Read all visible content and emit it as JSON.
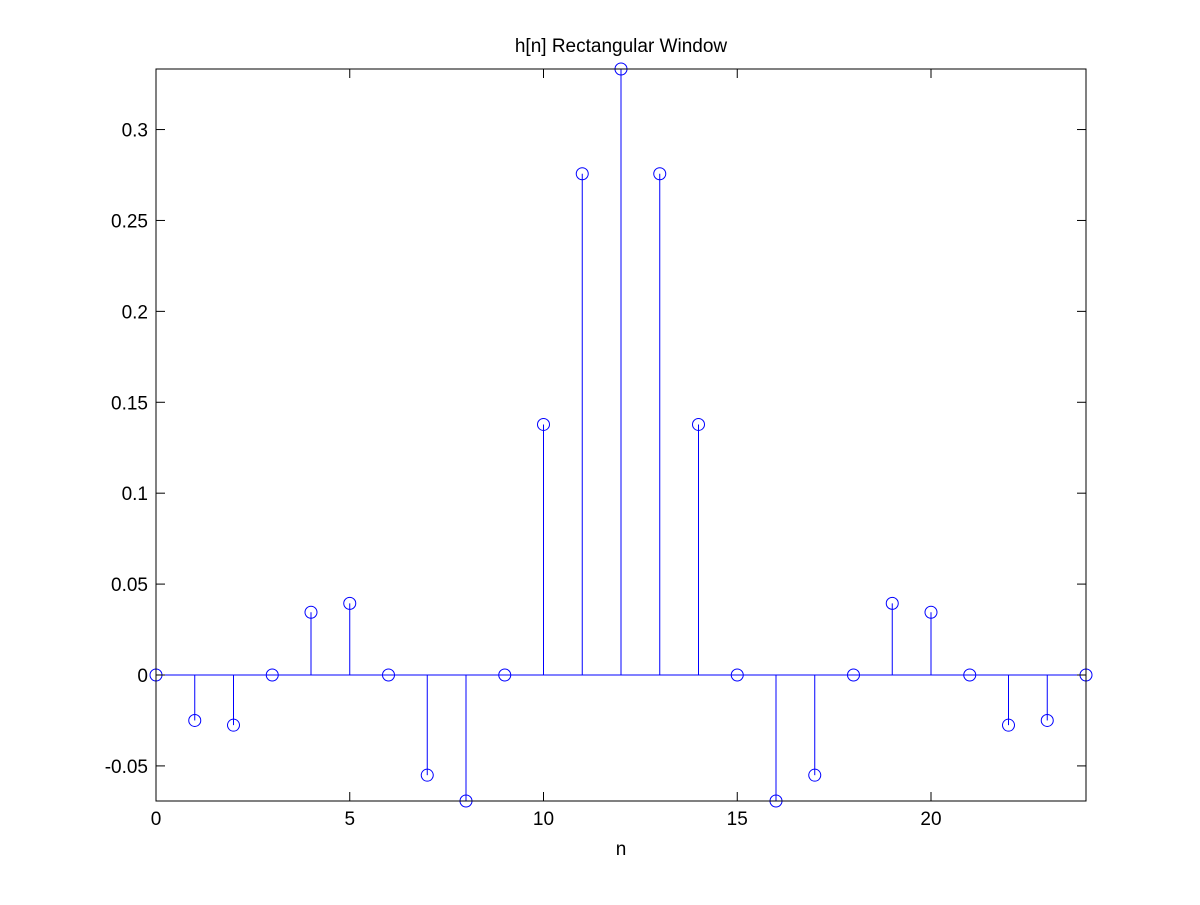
{
  "chart_data": {
    "type": "stem",
    "title": "h[n] Rectangular Window",
    "xlabel": "n",
    "ylabel": "",
    "xlim": [
      0,
      24
    ],
    "ylim": [
      -0.0693,
      0.3333
    ],
    "xticks": [
      0,
      5,
      10,
      15,
      20
    ],
    "xtick_labels": [
      "0",
      "5",
      "10",
      "15",
      "20"
    ],
    "yticks": [
      -0.05,
      0,
      0.05,
      0.1,
      0.15,
      0.2,
      0.25,
      0.3
    ],
    "ytick_labels": [
      "-0.05",
      "0",
      "0.05",
      "0.1",
      "0.15",
      "0.2",
      "0.25",
      "0.3"
    ],
    "grid": false,
    "series": [
      {
        "color": "#0000ff",
        "marker": "circle",
        "x": [
          0,
          1,
          2,
          3,
          4,
          5,
          6,
          7,
          8,
          9,
          10,
          11,
          12,
          13,
          14,
          15,
          16,
          17,
          18,
          19,
          20,
          21,
          22,
          23,
          24
        ],
        "values": [
          0,
          -0.025,
          -0.0276,
          0,
          0.0345,
          0.0394,
          0,
          -0.0551,
          -0.0693,
          0,
          0.1378,
          0.2757,
          0.3333,
          0.2757,
          0.1378,
          0,
          -0.0693,
          -0.0551,
          0,
          0.0394,
          0.0345,
          0,
          -0.0276,
          -0.025,
          0
        ]
      }
    ]
  }
}
